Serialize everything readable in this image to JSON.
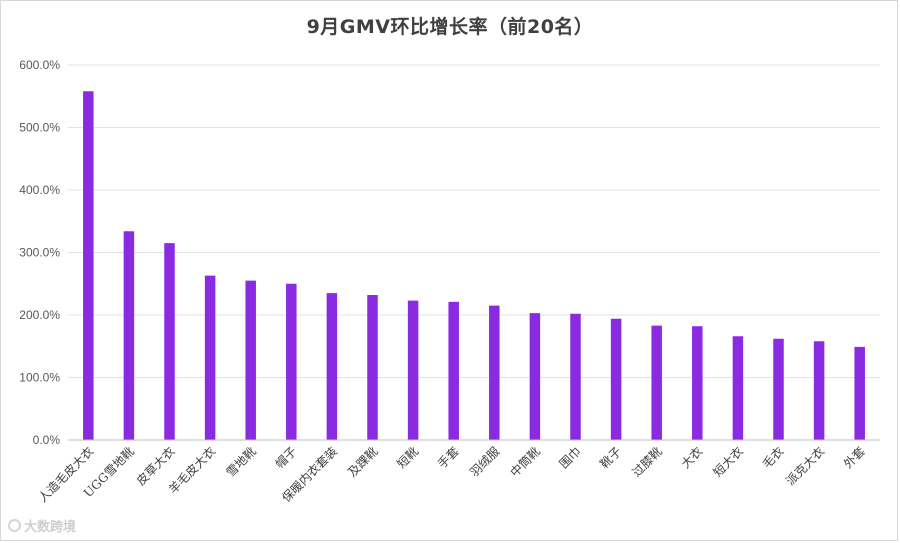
{
  "chart_data": {
    "type": "bar",
    "title": "9月GMV环比增长率（前20名）",
    "categories": [
      "人造毛皮大衣",
      "UGG雪地靴",
      "皮草大衣",
      "羊毛皮大衣",
      "雪地靴",
      "帽子",
      "保暖内衣套装",
      "及踝靴",
      "短靴",
      "手套",
      "羽绒服",
      "中筒靴",
      "围巾",
      "靴子",
      "过膝靴",
      "大衣",
      "短大衣",
      "毛衣",
      "派克大衣",
      "外套"
    ],
    "values": [
      558,
      334,
      315,
      263,
      255,
      250,
      235,
      232,
      223,
      221,
      215,
      203,
      202,
      194,
      183,
      182,
      166,
      162,
      158,
      149
    ],
    "ylim": [
      0,
      600
    ],
    "yticks": [
      "0.0%",
      "100.0%",
      "200.0%",
      "300.0%",
      "400.0%",
      "500.0%",
      "600.0%"
    ],
    "ytick_values": [
      0,
      100,
      200,
      300,
      400,
      500,
      600
    ],
    "grid": true,
    "bar_color": "#8a2be2"
  },
  "watermark": {
    "text": "大数跨境"
  }
}
